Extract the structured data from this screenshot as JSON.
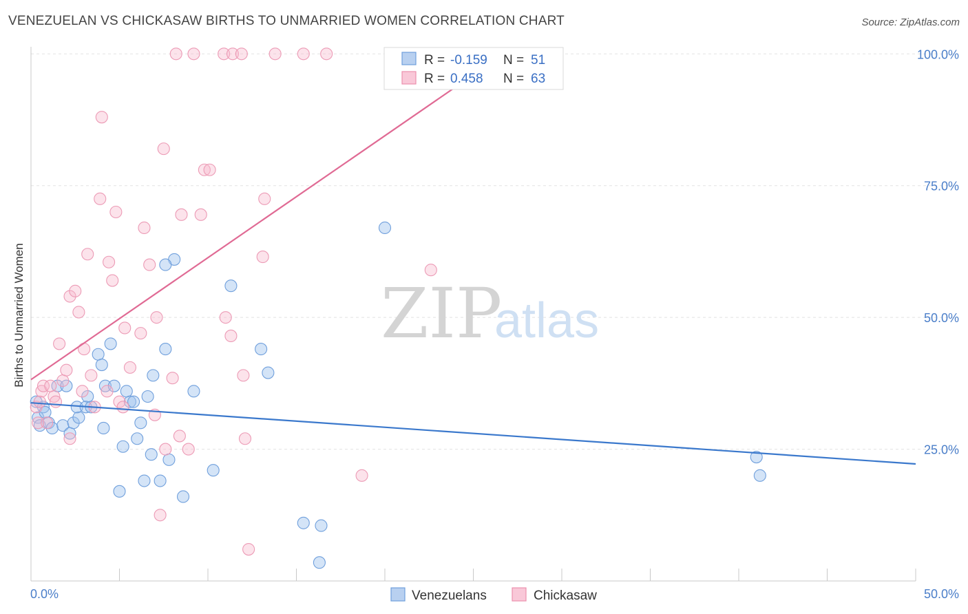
{
  "header": {
    "title": "VENEZUELAN VS CHICKASAW BIRTHS TO UNMARRIED WOMEN CORRELATION CHART",
    "source": "Source: ZipAtlas.com"
  },
  "watermark": {
    "zip": "ZIP",
    "atlas": "atlas"
  },
  "legend_box": {
    "rows": [
      {
        "r_label": "R =",
        "r_value": "-0.159",
        "n_label": "N =",
        "n_value": "51"
      },
      {
        "r_label": "R =",
        "r_value": "0.458",
        "n_label": "N =",
        "n_value": "63"
      }
    ]
  },
  "chart_data": {
    "type": "scatter",
    "title": "VENEZUELAN VS CHICKASAW BIRTHS TO UNMARRIED WOMEN CORRELATION CHART",
    "xlabel": "",
    "ylabel": "Births to Unmarried Women",
    "xlim": [
      0,
      50
    ],
    "ylim": [
      0,
      105
    ],
    "x_tick_labels": [
      "0.0%",
      "50.0%"
    ],
    "y_ticks": [
      25,
      50,
      75,
      100
    ],
    "y_tick_labels": [
      "25.0%",
      "50.0%",
      "75.0%",
      "100.0%"
    ],
    "grid": true,
    "legend_position": "top-center",
    "colors": {
      "Venezuelans": "#4a86d8",
      "Chickasaw": "#ea7fa2"
    },
    "series": [
      {
        "name": "Venezuelans",
        "r": -0.159,
        "n": 51,
        "trend": {
          "x0": 0,
          "y0": 33.8,
          "x1": 50,
          "y1": 22.2
        },
        "points": [
          [
            0.3,
            34
          ],
          [
            0.4,
            31
          ],
          [
            0.5,
            29.5
          ],
          [
            0.7,
            33
          ],
          [
            0.8,
            32
          ],
          [
            1,
            30
          ],
          [
            1.2,
            29
          ],
          [
            1.5,
            37
          ],
          [
            1.8,
            29.5
          ],
          [
            2,
            37
          ],
          [
            2.2,
            28
          ],
          [
            2.4,
            30
          ],
          [
            2.7,
            31
          ],
          [
            2.6,
            33
          ],
          [
            3.2,
            35
          ],
          [
            3.1,
            33
          ],
          [
            3.8,
            43
          ],
          [
            4,
            41
          ],
          [
            4.2,
            37
          ],
          [
            4.5,
            45
          ],
          [
            4.7,
            37
          ],
          [
            5,
            17
          ],
          [
            5.2,
            25.5
          ],
          [
            5.4,
            36
          ],
          [
            5.6,
            34
          ],
          [
            5.8,
            34
          ],
          [
            6,
            27
          ],
          [
            6.2,
            30
          ],
          [
            6.4,
            19
          ],
          [
            6.6,
            35
          ],
          [
            6.8,
            24
          ],
          [
            6.9,
            39
          ],
          [
            7.3,
            19
          ],
          [
            7.6,
            44
          ],
          [
            7.8,
            23
          ],
          [
            8.1,
            61
          ],
          [
            7.6,
            60
          ],
          [
            8.6,
            16
          ],
          [
            9.2,
            36
          ],
          [
            10.3,
            21
          ],
          [
            11.3,
            56
          ],
          [
            13,
            44
          ],
          [
            13.4,
            39.5
          ],
          [
            15.4,
            11
          ],
          [
            16.3,
            3.5
          ],
          [
            16.4,
            10.5
          ],
          [
            20,
            67
          ],
          [
            41,
            23.5
          ],
          [
            41.2,
            20
          ],
          [
            3.4,
            33
          ],
          [
            4.1,
            29
          ]
        ]
      },
      {
        "name": "Chickasaw",
        "r": 0.458,
        "n": 63,
        "trend": {
          "x0": 0,
          "y0": 38.2,
          "x1": 25.2,
          "y1": 96.5,
          "dash_to_x": 26.5,
          "dash_to_y": 99.5
        },
        "points": [
          [
            0.3,
            33
          ],
          [
            0.4,
            30
          ],
          [
            0.5,
            34
          ],
          [
            0.6,
            36
          ],
          [
            0.7,
            37
          ],
          [
            0.9,
            30
          ],
          [
            1.1,
            37
          ],
          [
            1.3,
            35
          ],
          [
            1.4,
            34
          ],
          [
            1.6,
            45
          ],
          [
            1.8,
            38
          ],
          [
            2,
            40
          ],
          [
            2.2,
            27
          ],
          [
            2.2,
            54
          ],
          [
            2.5,
            55
          ],
          [
            2.7,
            51
          ],
          [
            2.9,
            36
          ],
          [
            3,
            44
          ],
          [
            3.2,
            62
          ],
          [
            3.4,
            39
          ],
          [
            3.6,
            33
          ],
          [
            3.9,
            72.5
          ],
          [
            4,
            88
          ],
          [
            4.3,
            36
          ],
          [
            4.4,
            60.5
          ],
          [
            4.6,
            57
          ],
          [
            4.8,
            70
          ],
          [
            5,
            34
          ],
          [
            5.2,
            33
          ],
          [
            5.3,
            48
          ],
          [
            5.6,
            40.5
          ],
          [
            6.2,
            47
          ],
          [
            6.4,
            67
          ],
          [
            6.7,
            60
          ],
          [
            7,
            31.5
          ],
          [
            7.1,
            50
          ],
          [
            7.3,
            12.5
          ],
          [
            7.5,
            82
          ],
          [
            7.6,
            25
          ],
          [
            8,
            38.5
          ],
          [
            8.2,
            100
          ],
          [
            8.4,
            27.5
          ],
          [
            8.5,
            69.5
          ],
          [
            8.9,
            25
          ],
          [
            9.2,
            100
          ],
          [
            9.6,
            69.5
          ],
          [
            9.8,
            78
          ],
          [
            10.1,
            78
          ],
          [
            10.9,
            100
          ],
          [
            11,
            50
          ],
          [
            11.4,
            100
          ],
          [
            11.3,
            46.5
          ],
          [
            11.9,
            100
          ],
          [
            12,
            39
          ],
          [
            12.1,
            27
          ],
          [
            12.3,
            6
          ],
          [
            13.1,
            61.5
          ],
          [
            13.2,
            72.5
          ],
          [
            13.8,
            100
          ],
          [
            15.4,
            100
          ],
          [
            16.7,
            100
          ],
          [
            18.7,
            20
          ],
          [
            22.6,
            59
          ]
        ]
      }
    ]
  },
  "bottom_legend": {
    "items": [
      {
        "label": "Venezuelans"
      },
      {
        "label": "Chickasaw"
      }
    ]
  }
}
